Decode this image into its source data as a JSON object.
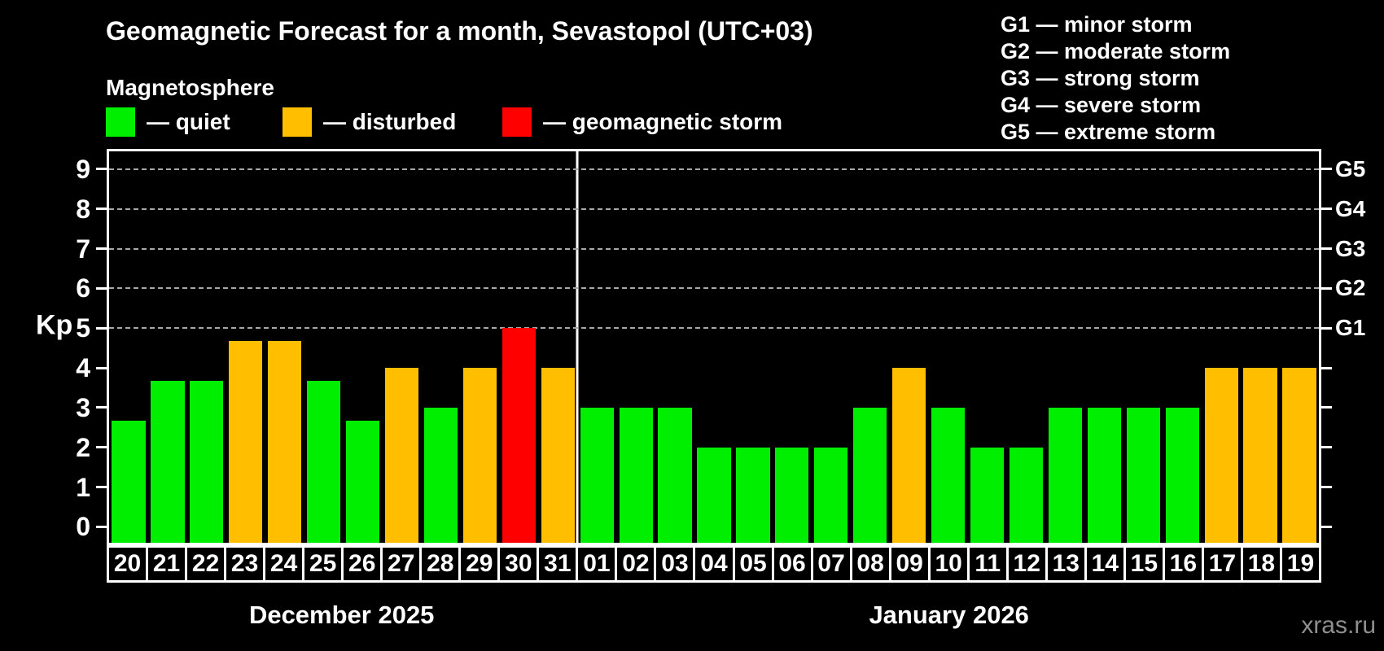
{
  "title": "Geomagnetic Forecast for a month, Sevastopol (UTC+03)",
  "subtitle": "Magnetosphere",
  "legend": {
    "items": [
      {
        "key": "quiet",
        "label": "— quiet",
        "color": "#00ee00"
      },
      {
        "key": "disturbed",
        "label": "— disturbed",
        "color": "#ffbf00"
      },
      {
        "key": "storm",
        "label": "— geomagnetic storm",
        "color": "#ff0000"
      }
    ]
  },
  "g_legend": [
    "G1 — minor storm",
    "G2 — moderate storm",
    "G3 — strong storm",
    "G4 — severe storm",
    "G5 — extreme storm"
  ],
  "watermark": "xras.ru",
  "chart_data": {
    "type": "bar",
    "title": "Geomagnetic Forecast for a month, Sevastopol (UTC+03)",
    "ylabel": "Kp",
    "ylim": [
      -0.4,
      9.45
    ],
    "yticks": [
      0,
      1,
      2,
      3,
      4,
      5,
      6,
      7,
      8,
      9
    ],
    "gridlines_at": [
      5,
      6,
      7,
      8,
      9
    ],
    "grid": true,
    "legend_position": "top-left",
    "right_axis": [
      {
        "value": 5,
        "label": "G1"
      },
      {
        "value": 6,
        "label": "G2"
      },
      {
        "value": 7,
        "label": "G3"
      },
      {
        "value": 8,
        "label": "G4"
      },
      {
        "value": 9,
        "label": "G5"
      }
    ],
    "status_colors": {
      "quiet": "#00ee00",
      "disturbed": "#ffbf00",
      "storm": "#ff0000"
    },
    "months": [
      {
        "label": "December 2025",
        "days": [
          "20",
          "21",
          "22",
          "23",
          "24",
          "25",
          "26",
          "27",
          "28",
          "29",
          "30",
          "31"
        ],
        "values": [
          2.67,
          3.67,
          3.67,
          4.67,
          4.67,
          3.67,
          2.67,
          4,
          3,
          4,
          5,
          4
        ],
        "status": [
          "quiet",
          "quiet",
          "quiet",
          "disturbed",
          "disturbed",
          "quiet",
          "quiet",
          "disturbed",
          "quiet",
          "disturbed",
          "storm",
          "disturbed"
        ]
      },
      {
        "label": "January 2026",
        "days": [
          "01",
          "02",
          "03",
          "04",
          "05",
          "06",
          "07",
          "08",
          "09",
          "10",
          "11",
          "12",
          "13",
          "14",
          "15",
          "16",
          "17",
          "18",
          "19"
        ],
        "values": [
          3,
          3,
          3,
          2,
          2,
          2,
          2,
          3,
          4,
          3,
          2,
          2,
          3,
          3,
          3,
          3,
          4,
          4,
          4
        ],
        "status": [
          "quiet",
          "quiet",
          "quiet",
          "quiet",
          "quiet",
          "quiet",
          "quiet",
          "quiet",
          "disturbed",
          "quiet",
          "quiet",
          "quiet",
          "quiet",
          "quiet",
          "quiet",
          "quiet",
          "disturbed",
          "disturbed",
          "disturbed"
        ]
      }
    ]
  }
}
